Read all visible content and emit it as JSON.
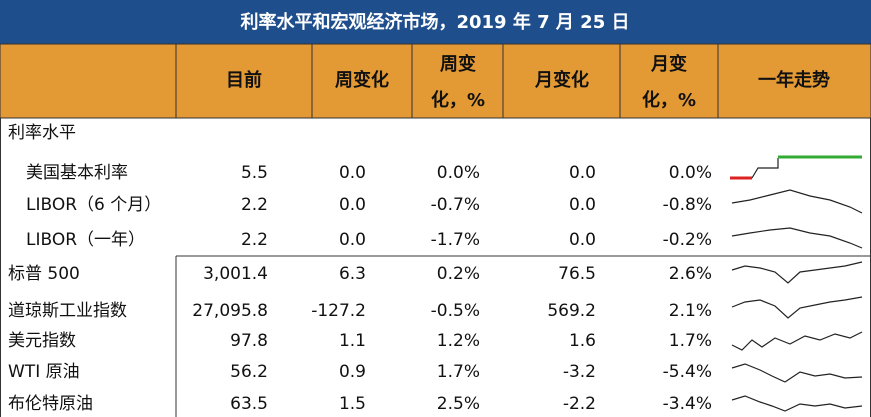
{
  "title": "利率水平和宏观经济市场，2019 年 7 月 25 日",
  "table": {
    "headers": [
      [
        "目前"
      ],
      [
        "周变化"
      ],
      [
        "周变",
        "化，%"
      ],
      [
        "月变化"
      ],
      [
        "月变",
        "化，%"
      ],
      [
        "一年走势"
      ]
    ],
    "rows": [
      {
        "label": "利率水平"
      },
      {
        "label": "美国基本利率",
        "cells": [
          "5.5",
          "0.0",
          "0.0%",
          "0.0",
          "0.0%"
        ]
      },
      {
        "label": "LIBOR（6 个月）",
        "cells": [
          "2.2",
          "0.0",
          "-0.7%",
          "0.0",
          "-0.8%"
        ]
      },
      {
        "label": "LIBOR（一年）",
        "cells": [
          "2.2",
          "0.0",
          "-1.7%",
          "0.0",
          "-0.2%"
        ]
      },
      {
        "label": "标普 500",
        "cells": [
          "3,001.4",
          "6.3",
          "0.2%",
          "76.5",
          "2.6%"
        ]
      },
      {
        "label": "道琼斯工业指数",
        "cells": [
          "27,095.8",
          "-127.2",
          "-0.5%",
          "569.2",
          "2.1%"
        ]
      },
      {
        "label": "美元指数",
        "cells": [
          "97.8",
          "1.1",
          "1.2%",
          "1.6",
          "1.7%"
        ]
      },
      {
        "label": "WTI 原油",
        "cells": [
          "56.2",
          "0.9",
          "1.7%",
          "-3.2",
          "-5.4%"
        ]
      },
      {
        "label": "布伦特原油",
        "cells": [
          "63.5",
          "1.5",
          "2.5%",
          "-2.2",
          "-3.4%"
        ]
      }
    ]
  }
}
